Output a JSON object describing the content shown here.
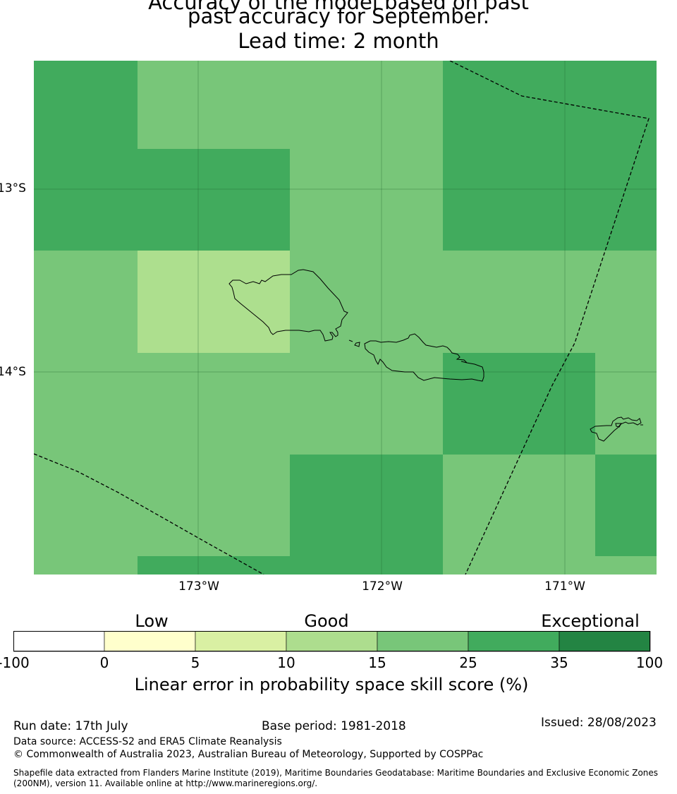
{
  "title": {
    "line1": "Accuracy of the model based on past",
    "line2": "past accuracy for September.",
    "line3": "Lead time: 2 month"
  },
  "map": {
    "lat_labels": [
      "13°S",
      "14°S"
    ],
    "lon_labels": [
      "173°W",
      "172°W",
      "171°W"
    ],
    "colors": {
      "skill_10_15": "#addf8e",
      "skill_15_25": "#78c679",
      "skill_25_35": "#41ab5d",
      "coastline": "#000000",
      "eez_boundary": "#000000",
      "gridline": "#1b5e2a"
    }
  },
  "legend": {
    "categories": [
      "Low",
      "Good",
      "Exceptional"
    ],
    "ticks": [
      "-100",
      "0",
      "5",
      "10",
      "15",
      "25",
      "35",
      "100"
    ],
    "colors": [
      "#ffffff",
      "#ffffcc",
      "#d9f0a3",
      "#addd8e",
      "#78c679",
      "#41ab5d",
      "#238443"
    ],
    "label": "Linear error in probability space skill score (%)"
  },
  "footer": {
    "run_date": "Run date: 17th July",
    "base_period": "Base period: 1981-2018",
    "issued": "Issued: 28/08/2023",
    "data_source": "Data source: ACCESS-S2 and ERA5 Climate Reanalysis",
    "copyright": "© Commonwealth of Australia 2023, Australian Bureau of Meteorology, Supported by COSPPac",
    "shapefile_line1": "Shapefile data extracted from Flanders Marine Institute (2019), Maritime Boundaries Geodatabase: Maritime Boundaries and Exclusive Economic Zones",
    "shapefile_line2": "(200NM), version 11. Available online at http://www.marineregions.org/."
  }
}
